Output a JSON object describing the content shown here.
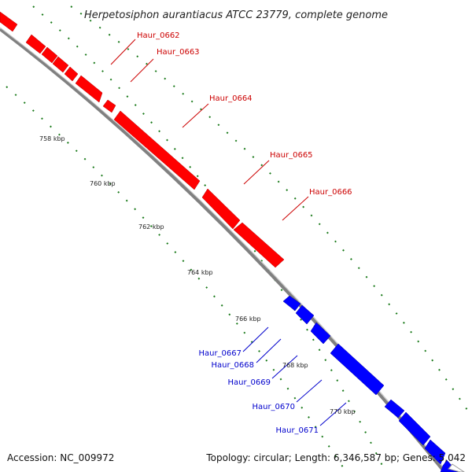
{
  "title": "Herpetosiphon aurantiacus ATCC 23779, complete genome",
  "footer": {
    "accession": "Accession: NC_009972",
    "topology": "Topology: circular; Length: 6,346,587 bp; Genes: 5,042"
  },
  "colors": {
    "forward": "#ff0000",
    "reverse": "#0000ff",
    "forward_label": "#cc0000",
    "reverse_label": "#0000cc",
    "backbone": "#808080",
    "ticks": "#1a7a1a"
  },
  "kbp_ticks": [
    "758 kbp",
    "760 kbp",
    "762 kbp",
    "764 kbp",
    "766 kbp",
    "768 kbp",
    "770 kbp"
  ],
  "forward_genes": [
    "Haur_0662",
    "Haur_0663",
    "Haur_0664",
    "Haur_0665",
    "Haur_0666"
  ],
  "reverse_genes": [
    "Haur_0667",
    "Haur_0668",
    "Haur_0669",
    "Haur_0670",
    "Haur_0671"
  ]
}
